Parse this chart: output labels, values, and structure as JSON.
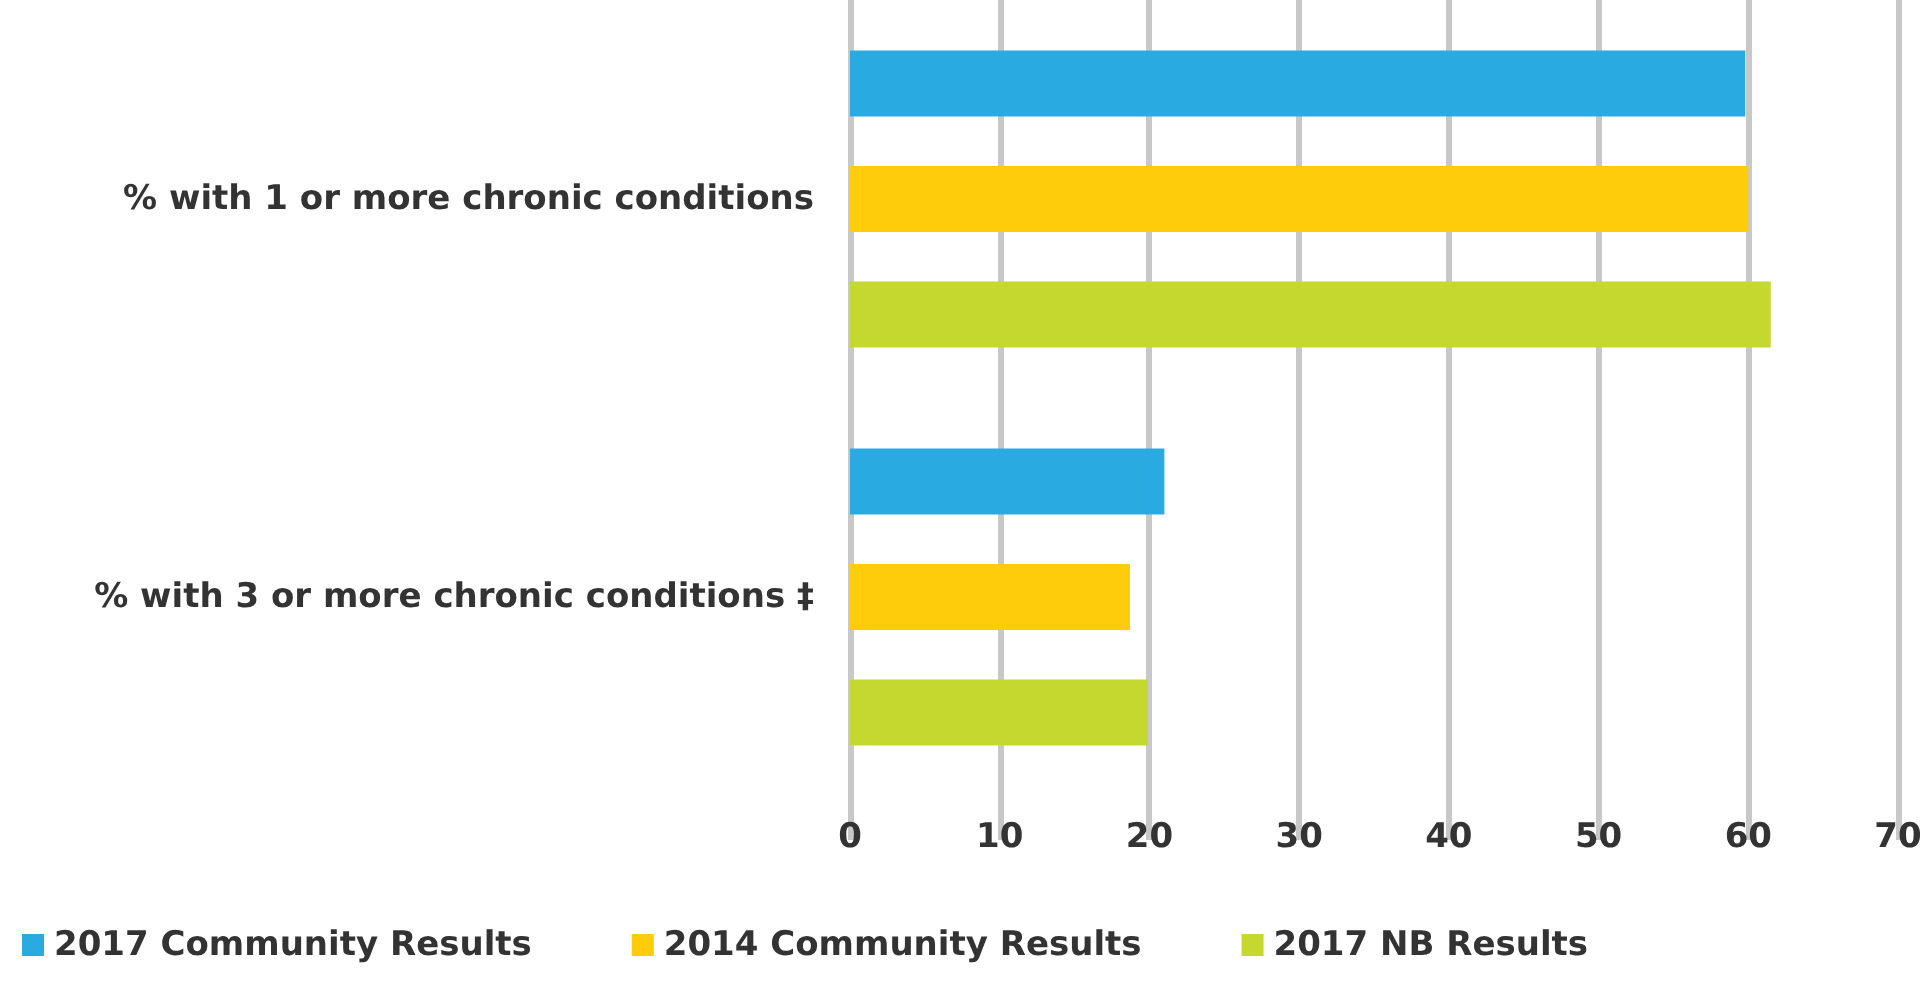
{
  "chart_data": {
    "type": "bar",
    "orientation": "horizontal",
    "categories": [
      "% with 1 or more chronic conditions",
      "% with 3 or more chronic conditions ‡"
    ],
    "series": [
      {
        "name": "2017 Community Results",
        "color": "#29abe2",
        "values": [
          59.8,
          21
        ]
      },
      {
        "name": "2014 Community Results",
        "color": "#fecc0a",
        "values": [
          60,
          18.7
        ]
      },
      {
        "name": "2017 NB Results",
        "color": "#c5d82f",
        "values": [
          61.5,
          19.9
        ]
      }
    ],
    "xlim": [
      0,
      70
    ],
    "xticks": [
      0,
      10,
      20,
      30,
      40,
      50,
      60,
      70
    ],
    "grid": "x",
    "legend": "bottom left"
  }
}
